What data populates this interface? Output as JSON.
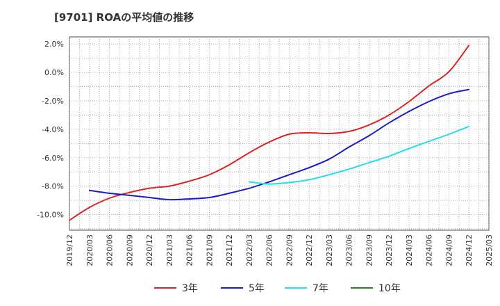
{
  "chart_data": {
    "type": "line",
    "title": "[9701]  ROAの平均値の推移",
    "xlabel": "",
    "ylabel": "",
    "x_ticks": [
      "2019/12",
      "2020/03",
      "2020/06",
      "2020/09",
      "2020/12",
      "2021/03",
      "2021/06",
      "2021/09",
      "2021/12",
      "2022/03",
      "2022/06",
      "2022/09",
      "2022/12",
      "2023/03",
      "2023/06",
      "2023/09",
      "2023/12",
      "2024/03",
      "2024/06",
      "2024/09",
      "2024/12",
      "2025/03"
    ],
    "y_ticks": [
      "2.0%",
      "0.0%",
      "-2.0%",
      "-4.0%",
      "-6.0%",
      "-8.0%",
      "-10.0%"
    ],
    "y_tick_values": [
      2,
      0,
      -2,
      -4,
      -6,
      -8,
      -10
    ],
    "ylim": [
      -11.1,
      2.5
    ],
    "grid": true,
    "legend_position": "bottom",
    "series": [
      {
        "name": "3年",
        "color": "#dd2222",
        "x": [
          "2019/12",
          "2020/03",
          "2020/06",
          "2020/09",
          "2020/12",
          "2021/03",
          "2021/06",
          "2021/09",
          "2021/12",
          "2022/03",
          "2022/06",
          "2022/09",
          "2022/12",
          "2023/03",
          "2023/06",
          "2023/09",
          "2023/12",
          "2024/03",
          "2024/06",
          "2024/09",
          "2024/12"
        ],
        "values": [
          -10.4,
          -9.5,
          -8.85,
          -8.45,
          -8.15,
          -8.0,
          -7.65,
          -7.2,
          -6.5,
          -5.65,
          -4.9,
          -4.35,
          -4.25,
          -4.3,
          -4.15,
          -3.7,
          -3.0,
          -2.05,
          -0.95,
          0.05,
          1.9
        ]
      },
      {
        "name": "5年",
        "color": "#1a1acc",
        "x": [
          "2020/03",
          "2020/06",
          "2020/09",
          "2020/12",
          "2021/03",
          "2021/06",
          "2021/09",
          "2021/12",
          "2022/03",
          "2022/06",
          "2022/09",
          "2022/12",
          "2023/03",
          "2023/06",
          "2023/09",
          "2023/12",
          "2024/03",
          "2024/06",
          "2024/09",
          "2024/12"
        ],
        "values": [
          -8.3,
          -8.5,
          -8.65,
          -8.8,
          -8.95,
          -8.9,
          -8.8,
          -8.5,
          -8.15,
          -7.7,
          -7.2,
          -6.7,
          -6.1,
          -5.25,
          -4.45,
          -3.55,
          -2.75,
          -2.05,
          -1.5,
          -1.2
        ]
      },
      {
        "name": "7年",
        "color": "#22ddee",
        "x": [
          "2022/03",
          "2022/06",
          "2022/09",
          "2022/12",
          "2023/03",
          "2023/06",
          "2023/09",
          "2023/12",
          "2024/03",
          "2024/06",
          "2024/09",
          "2024/12"
        ],
        "values": [
          -7.7,
          -7.85,
          -7.75,
          -7.55,
          -7.2,
          -6.8,
          -6.35,
          -5.9,
          -5.35,
          -4.85,
          -4.35,
          -3.8
        ]
      },
      {
        "name": "10年",
        "color": "#228822",
        "x": [],
        "values": []
      }
    ]
  }
}
